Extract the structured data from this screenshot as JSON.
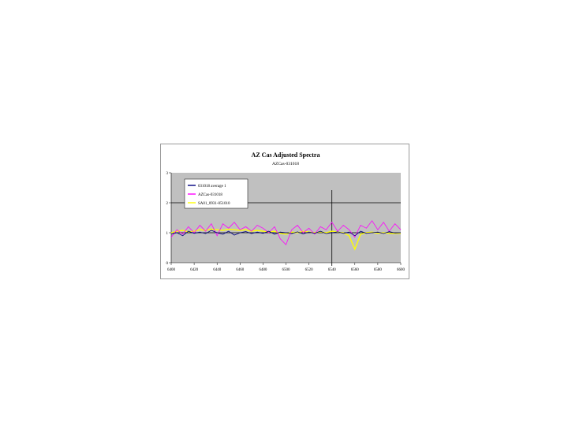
{
  "chart_data": {
    "type": "line",
    "title": "AZ Cas Adjusted Spectra",
    "subtitle": "AZCas-031018",
    "xlim": [
      6400,
      6600
    ],
    "ylim": [
      0,
      3
    ],
    "xticks": [
      6400,
      6420,
      6440,
      6460,
      6480,
      6500,
      6520,
      6540,
      6560,
      6580,
      6600
    ],
    "yticks": [
      0,
      1,
      2,
      3
    ],
    "vline_x": 6540,
    "hline_y": [
      1,
      2
    ],
    "plot_background": "#c0c0c0",
    "legend_position": "top-left",
    "series": [
      {
        "name": "031018 average 1",
        "color": "#000080",
        "x": [
          6400,
          6405,
          6410,
          6415,
          6420,
          6425,
          6430,
          6435,
          6440,
          6445,
          6450,
          6455,
          6460,
          6465,
          6470,
          6475,
          6480,
          6485,
          6490,
          6495,
          6500,
          6505,
          6510,
          6515,
          6520,
          6525,
          6530,
          6535,
          6540,
          6545,
          6550,
          6555,
          6560,
          6565,
          6570,
          6575,
          6580,
          6585,
          6590,
          6595,
          6600
        ],
        "values": [
          0.95,
          1.0,
          0.9,
          1.05,
          0.98,
          1.02,
          0.97,
          1.08,
          1.0,
          0.95,
          1.05,
          0.92,
          1.0,
          1.04,
          0.97,
          1.02,
          0.98,
          1.05,
          0.95,
          1.02,
          1.0,
          0.97,
          1.03,
          0.96,
          1.02,
          0.98,
          1.05,
          0.97,
          1.0,
          1.03,
          0.98,
          1.02,
          0.9,
          1.05,
          0.98,
          1.0,
          1.02,
          0.97,
          1.04,
          0.99,
          1.0
        ]
      },
      {
        "name": "AZCas-031018",
        "color": "#ff00ff",
        "x": [
          6400,
          6405,
          6410,
          6415,
          6420,
          6425,
          6430,
          6435,
          6440,
          6445,
          6450,
          6455,
          6460,
          6465,
          6470,
          6475,
          6480,
          6485,
          6490,
          6495,
          6500,
          6505,
          6510,
          6515,
          6520,
          6525,
          6530,
          6535,
          6540,
          6545,
          6550,
          6555,
          6560,
          6565,
          6570,
          6575,
          6580,
          6585,
          6590,
          6595,
          6600
        ],
        "values": [
          0.85,
          1.1,
          0.95,
          1.2,
          1.0,
          1.25,
          1.05,
          1.3,
          0.9,
          1.3,
          1.15,
          1.35,
          1.1,
          1.2,
          1.05,
          1.25,
          1.15,
          1.0,
          1.2,
          0.8,
          0.6,
          1.1,
          1.25,
          1.0,
          1.15,
          0.95,
          1.2,
          1.1,
          1.35,
          1.05,
          1.25,
          1.1,
          0.85,
          1.25,
          1.15,
          1.4,
          1.1,
          1.35,
          1.05,
          1.3,
          1.1
        ]
      },
      {
        "name": "SA01_0931-051010",
        "color": "#ffff00",
        "x": [
          6400,
          6405,
          6410,
          6415,
          6420,
          6425,
          6430,
          6435,
          6440,
          6445,
          6450,
          6455,
          6460,
          6465,
          6470,
          6475,
          6480,
          6485,
          6490,
          6495,
          6500,
          6505,
          6510,
          6515,
          6520,
          6525,
          6530,
          6535,
          6540,
          6545,
          6550,
          6555,
          6560,
          6565,
          6570,
          6575,
          6580,
          6585,
          6590,
          6595,
          6600
        ],
        "values": [
          1.0,
          1.05,
          1.08,
          1.03,
          1.05,
          1.1,
          1.08,
          1.12,
          1.1,
          1.08,
          1.12,
          1.1,
          1.08,
          1.1,
          1.05,
          1.08,
          1.05,
          1.02,
          1.05,
          0.98,
          0.95,
          1.02,
          1.0,
          1.05,
          1.02,
          1.0,
          1.03,
          1.0,
          1.05,
          1.02,
          1.0,
          0.9,
          0.45,
          0.95,
          1.0,
          1.02,
          0.98,
          1.0,
          0.98,
          0.97,
          0.98
        ]
      }
    ]
  }
}
